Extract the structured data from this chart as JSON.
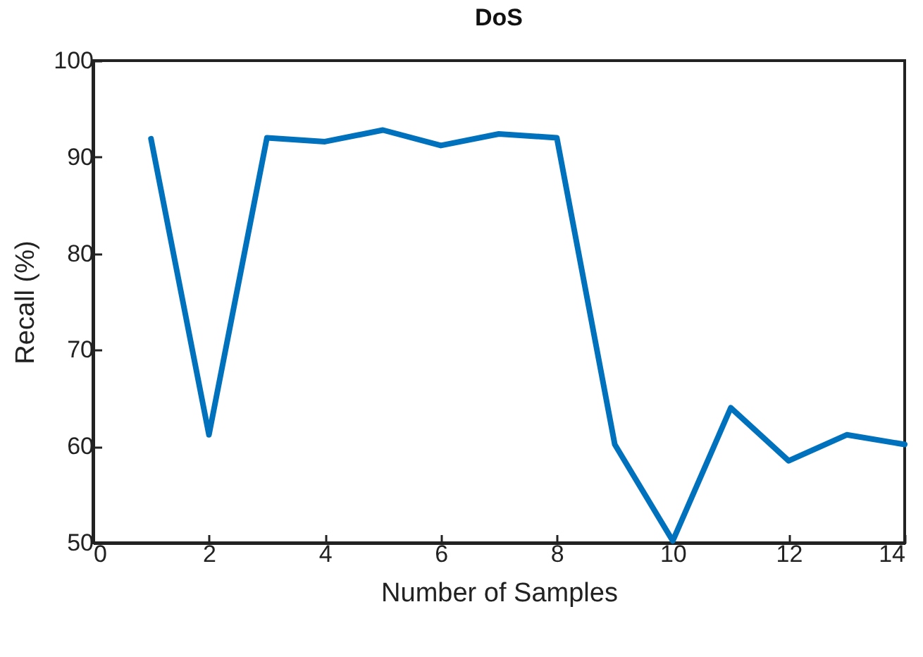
{
  "chart_data": {
    "type": "line",
    "title": "DoS",
    "xlabel": "Number of Samples",
    "ylabel": "Recall (%)",
    "x": [
      1,
      2,
      3,
      4,
      5,
      6,
      7,
      8,
      9,
      10,
      11,
      12,
      13,
      14
    ],
    "series": [
      {
        "color": "#0072bd",
        "values": [
          91.9,
          61.2,
          92.0,
          91.6,
          92.8,
          91.2,
          92.4,
          92.0,
          60.2,
          50.2,
          64.0,
          58.5,
          61.2,
          60.2
        ]
      }
    ],
    "xlim": [
      0,
      14
    ],
    "xticks": [
      0,
      2,
      4,
      6,
      8,
      10,
      12,
      14
    ],
    "ylim": [
      50,
      100
    ],
    "yticks": [
      50,
      60,
      70,
      80,
      90,
      100
    ],
    "grid": false,
    "legend": false,
    "marker": "none",
    "line_style": "solid"
  }
}
